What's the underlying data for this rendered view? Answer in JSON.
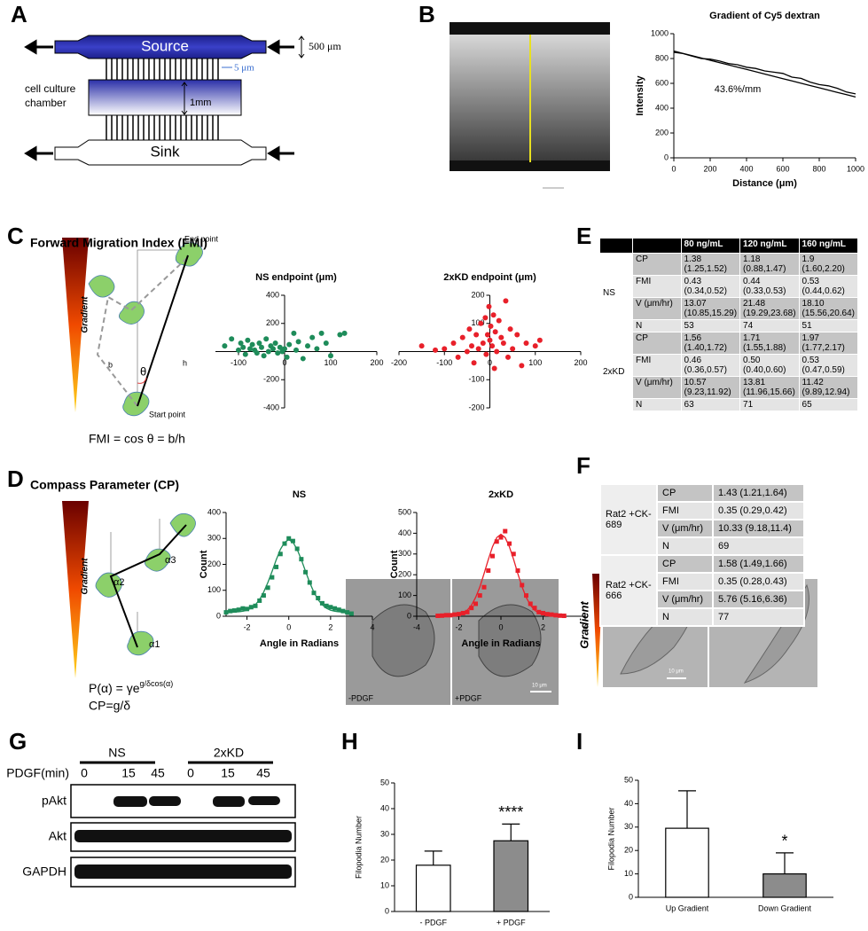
{
  "panel_labels": [
    "A",
    "B",
    "C",
    "D",
    "E",
    "F",
    "G",
    "H",
    "I"
  ],
  "panel_a": {
    "source": "Source",
    "sink": "Sink",
    "height_label": "500 μm",
    "channel_label": "5 μm",
    "chamber_label": [
      "cell culture",
      "chamber"
    ],
    "chamber_height": "1mm"
  },
  "panel_c": {
    "title": "Forward Migration Index (FMI)",
    "gradient": "Gradient",
    "end_point": "End point",
    "start_point": "Start point",
    "b": "b",
    "h": "h",
    "theta": "θ",
    "formula": "FMI = cos θ = b/h"
  },
  "panel_d": {
    "title": "Compass Parameter (CP)",
    "gradient": "Gradient",
    "alpha1": "α1",
    "alpha2": "α2",
    "alpha3": "α3",
    "formula_base": "P(α) = γe",
    "formula_exponent": "g/δcos(α)",
    "cp_formula": "CP=g/δ"
  },
  "table_e": {
    "columns": [
      "80 ng/mL",
      "120 ng/mL",
      "160 ng/mL"
    ],
    "groups": [
      {
        "name": "NS",
        "rows": [
          {
            "label": "CP",
            "cells": [
              "1.38 (1.25,1.52)",
              "1.18 (0.88,1.47)",
              "1.9 (1.60,2.20)"
            ]
          },
          {
            "label": "FMI",
            "cells": [
              "0.43 (0.34,0.52)",
              "0.44 (0.33,0.53)",
              "0.53 (0.44,0.62)"
            ]
          },
          {
            "label": "V (μm/hr)",
            "cells": [
              "13.07 (10.85,15.29)",
              "21.48 (19.29,23.68)",
              "18.10 (15.56,20.64)"
            ]
          },
          {
            "label": "N",
            "cells": [
              "53",
              "74",
              "51"
            ]
          }
        ]
      },
      {
        "name": "2xKD",
        "rows": [
          {
            "label": "CP",
            "cells": [
              "1.56 (1.40,1.72)",
              "1.71 (1.55,1.88)",
              "1.97 (1.77,2.17)"
            ]
          },
          {
            "label": "FMI",
            "cells": [
              "0.46 (0.36,0.57)",
              "0.50 (0.40,0.60)",
              "0.53 (0.47,0.59)"
            ]
          },
          {
            "label": "V (μm/hr)",
            "cells": [
              "10.57 (9.23,11.92)",
              "13.81 (11.96,15.66)",
              "11.42 (9.89,12.94)"
            ]
          },
          {
            "label": "N",
            "cells": [
              "63",
              "71",
              "65"
            ]
          }
        ]
      }
    ]
  },
  "table_f": {
    "groups": [
      {
        "name": "Rat2 +CK-689",
        "rows": [
          {
            "label": "CP",
            "value": "1.43 (1.21,1.64)"
          },
          {
            "label": "FMI",
            "value": "0.35 (0.29,0.42)"
          },
          {
            "label": "V (μm/hr)",
            "value": "10.33 (9.18,11.4)"
          },
          {
            "label": "N",
            "value": "69"
          }
        ]
      },
      {
        "name": "Rat2 +CK-666",
        "rows": [
          {
            "label": "CP",
            "value": "1.58 (1.49,1.66)"
          },
          {
            "label": "FMI",
            "value": "0.35 (0.28,0.43)"
          },
          {
            "label": "V (μm/hr)",
            "value": "5.76 (5.16,6.36)"
          },
          {
            "label": "N",
            "value": "77"
          }
        ]
      }
    ]
  },
  "panel_g": {
    "groups": [
      "NS",
      "2xKD"
    ],
    "treatment_label": "PDGF(min)",
    "timepoints": [
      "0",
      "15",
      "45",
      "0",
      "15",
      "45"
    ],
    "rows": [
      "pAkt",
      "Akt",
      "GAPDH"
    ]
  },
  "panel_h": {
    "image_labels": [
      "-PDGF",
      "+PDGF"
    ],
    "scale_bar": "10 μm"
  },
  "panel_i": {
    "gradient": "Gradient",
    "scale_bar": "10 μm"
  },
  "chart_data": [
    {
      "type": "line",
      "title": "Gradient of Cy5 dextran",
      "xlabel": "Distance (μm)",
      "ylabel": "Intensity",
      "annotation": "43.6%/mm",
      "x": [
        0,
        50,
        100,
        150,
        200,
        250,
        300,
        350,
        400,
        450,
        500,
        550,
        600,
        650,
        700,
        750,
        800,
        850,
        900,
        950,
        1000
      ],
      "series": [
        {
          "color": "#000000",
          "values": [
            850,
            840,
            820,
            800,
            795,
            780,
            760,
            750,
            730,
            720,
            700,
            690,
            680,
            650,
            640,
            610,
            590,
            580,
            560,
            530,
            515
          ]
        },
        {
          "color": "#000000",
          "values": [
            860,
            841.5,
            823,
            804.5,
            786,
            767.5,
            749,
            730.5,
            712,
            693.5,
            675,
            656.5,
            638,
            619.5,
            601,
            582.5,
            564,
            545.5,
            527,
            508.5,
            490
          ]
        }
      ],
      "xlim": [
        0,
        1000
      ],
      "xticks": [
        0,
        200,
        400,
        600,
        800,
        1000
      ],
      "ylim": [
        0,
        1000
      ],
      "yticks": [
        0,
        200,
        400,
        600,
        800,
        1000
      ]
    },
    {
      "type": "scatter",
      "title": "NS endpoint (μm)",
      "axes": "origin",
      "series": [
        {
          "color": "#1e8c5a",
          "marker": "circle",
          "x": [
            -130,
            -115,
            -100,
            -95,
            -90,
            -85,
            -80,
            -75,
            -70,
            -65,
            -60,
            -55,
            -50,
            -45,
            -40,
            -35,
            -30,
            -25,
            -20,
            -15,
            -10,
            -5,
            0,
            5,
            10,
            20,
            25,
            30,
            40,
            50,
            60,
            70,
            80,
            90,
            100,
            120,
            130
          ],
          "values": [
            40,
            90,
            10,
            60,
            30,
            -20,
            80,
            20,
            50,
            10,
            -10,
            60,
            30,
            -30,
            90,
            0,
            40,
            20,
            60,
            -10,
            30,
            0,
            20,
            -40,
            50,
            130,
            10,
            70,
            -50,
            40,
            100,
            20,
            130,
            60,
            -30,
            120,
            130
          ]
        }
      ],
      "xlim": [
        -150,
        200
      ],
      "xticks": [
        -100,
        0,
        100,
        200
      ],
      "ylim": [
        -400,
        400
      ],
      "yticks": [
        -400,
        -200,
        200,
        400
      ]
    },
    {
      "type": "scatter",
      "title": "2xKD  endpoint (μm)",
      "axes": "origin",
      "series": [
        {
          "color": "#e8202a",
          "marker": "circle",
          "x": [
            -150,
            -120,
            -100,
            -80,
            -70,
            -60,
            -50,
            -45,
            -40,
            -35,
            -30,
            -25,
            -20,
            -15,
            -10,
            -8,
            -5,
            -2,
            0,
            2,
            5,
            8,
            10,
            12,
            15,
            20,
            25,
            30,
            35,
            40,
            45,
            50,
            60,
            70,
            80,
            100,
            110
          ],
          "values": [
            20,
            5,
            10,
            30,
            -20,
            50,
            0,
            80,
            20,
            -40,
            60,
            10,
            100,
            30,
            120,
            -10,
            60,
            160,
            40,
            90,
            20,
            130,
            -60,
            70,
            0,
            110,
            50,
            30,
            180,
            -20,
            80,
            10,
            60,
            -50,
            30,
            20,
            40
          ]
        }
      ],
      "xlim": [
        -200,
        200
      ],
      "xticks": [
        -200,
        -100,
        0,
        100,
        200
      ],
      "ylim": [
        -200,
        200
      ],
      "yticks": [
        -200,
        -100,
        100,
        200
      ]
    },
    {
      "type": "scatter",
      "title": "NS",
      "xlabel": "Angle in Radians",
      "ylabel": "Count",
      "x": [
        -3,
        -2.8,
        -2.6,
        -2.4,
        -2.2,
        -2,
        -1.8,
        -1.6,
        -1.4,
        -1.2,
        -1,
        -0.8,
        -0.6,
        -0.4,
        -0.2,
        0,
        0.2,
        0.4,
        0.6,
        0.8,
        1,
        1.2,
        1.4,
        1.6,
        1.8,
        2,
        2.2,
        2.4,
        2.6,
        2.8,
        3
      ],
      "series": [
        {
          "color": "#1e8c5a",
          "marker": "square",
          "values": [
            15,
            20,
            22,
            25,
            30,
            28,
            35,
            40,
            60,
            80,
            110,
            150,
            190,
            240,
            280,
            300,
            290,
            260,
            220,
            170,
            130,
            90,
            70,
            50,
            40,
            35,
            30,
            25,
            20,
            15,
            10
          ]
        },
        {
          "color": "#1e8c5a",
          "kind": "line",
          "values": [
            15,
            15,
            16,
            17,
            19,
            23,
            31,
            44,
            64,
            93,
            130,
            173,
            218,
            258,
            285,
            295,
            285,
            258,
            218,
            173,
            130,
            93,
            64,
            44,
            31,
            23,
            19,
            17,
            16,
            15,
            15
          ]
        }
      ],
      "xlim": [
        -3,
        4
      ],
      "xticks": [
        -2,
        0,
        2,
        4
      ],
      "ylim": [
        0,
        400
      ],
      "yticks": [
        0,
        100,
        200,
        300,
        400
      ]
    },
    {
      "type": "scatter",
      "title": "2xKD",
      "xlabel": "Angle in Radians",
      "ylabel": "Count",
      "x": [
        -3,
        -2.8,
        -2.6,
        -2.4,
        -2.2,
        -2,
        -1.8,
        -1.6,
        -1.4,
        -1.2,
        -1,
        -0.8,
        -0.6,
        -0.4,
        -0.2,
        0,
        0.2,
        0.4,
        0.6,
        0.8,
        1,
        1.2,
        1.4,
        1.6,
        1.8,
        2,
        2.2,
        2.4,
        2.6,
        2.8,
        3
      ],
      "series": [
        {
          "color": "#e8202a",
          "marker": "square",
          "values": [
            2,
            3,
            5,
            5,
            8,
            10,
            15,
            20,
            40,
            60,
            100,
            140,
            220,
            290,
            360,
            380,
            410,
            350,
            300,
            220,
            150,
            100,
            60,
            40,
            20,
            15,
            10,
            8,
            5,
            3,
            2
          ]
        },
        {
          "color": "#e8202a",
          "kind": "line",
          "values": [
            0,
            0,
            0,
            1,
            3,
            7,
            14,
            29,
            53,
            91,
            142,
            206,
            274,
            335,
            379,
            395,
            379,
            335,
            274,
            206,
            142,
            91,
            53,
            29,
            14,
            7,
            3,
            1,
            0,
            0,
            0
          ]
        }
      ],
      "xlim": [
        -4,
        4
      ],
      "xticks": [
        -4,
        -2,
        0,
        2,
        4
      ],
      "ylim": [
        0,
        500
      ],
      "yticks": [
        0,
        100,
        200,
        300,
        400,
        500
      ]
    },
    {
      "type": "bar",
      "ylabel": "Filopodia Number",
      "categories": [
        "- PDGF",
        "+ PDGF"
      ],
      "values": [
        18,
        27.5
      ],
      "errors": [
        5.5,
        6.5
      ],
      "colors": [
        "#ffffff",
        "#8c8c8c"
      ],
      "annotation": "****",
      "ylim": [
        0,
        50
      ],
      "yticks": [
        0,
        10,
        20,
        30,
        40,
        50
      ]
    },
    {
      "type": "bar",
      "ylabel": "Filopodia Number",
      "categories": [
        "Up Gradient",
        "Down Gradient"
      ],
      "values": [
        29.5,
        10
      ],
      "errors": [
        16,
        9
      ],
      "colors": [
        "#ffffff",
        "#8c8c8c"
      ],
      "annotation": "*",
      "ylim": [
        0,
        50
      ],
      "yticks": [
        0,
        10,
        20,
        30,
        40,
        50
      ]
    }
  ]
}
